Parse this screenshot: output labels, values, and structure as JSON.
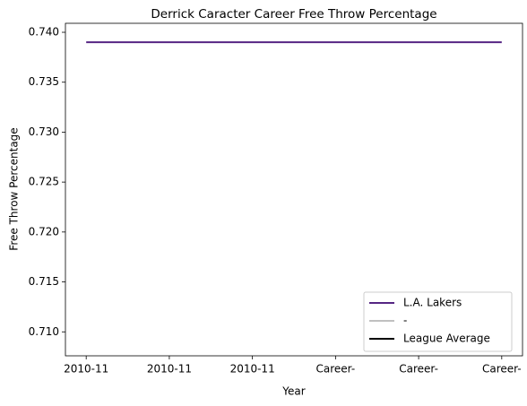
{
  "chart_data": {
    "type": "line",
    "title": "Derrick Caracter Career Free Throw Percentage",
    "xlabel": "Year",
    "ylabel": "Free Throw Percentage",
    "categories": [
      "2010-11",
      "2010-11",
      "2010-11",
      "Career-",
      "Career-",
      "Career-"
    ],
    "series": [
      {
        "name": "L.A. Lakers",
        "color": "#552583",
        "values": [
          0.739,
          0.739,
          0.739,
          0.739,
          0.739,
          0.739
        ]
      },
      {
        "name": "-",
        "color": "#c0c0c0",
        "values": [
          null,
          null,
          null,
          null,
          null,
          null
        ]
      },
      {
        "name": "League Average",
        "color": "#000000",
        "values": [
          null,
          null,
          null,
          null,
          null,
          null
        ]
      }
    ],
    "ylim": [
      0.7076,
      0.7409
    ],
    "yticks": [
      {
        "value": 0.71,
        "label": "0.710"
      },
      0.715,
      {
        "value": 0.72,
        "label": "0.720"
      },
      0.725,
      {
        "value": 0.73,
        "label": "0.730"
      },
      0.735,
      {
        "value": 0.74,
        "label": "0.740"
      }
    ],
    "legend": "lower right",
    "grid": false
  }
}
